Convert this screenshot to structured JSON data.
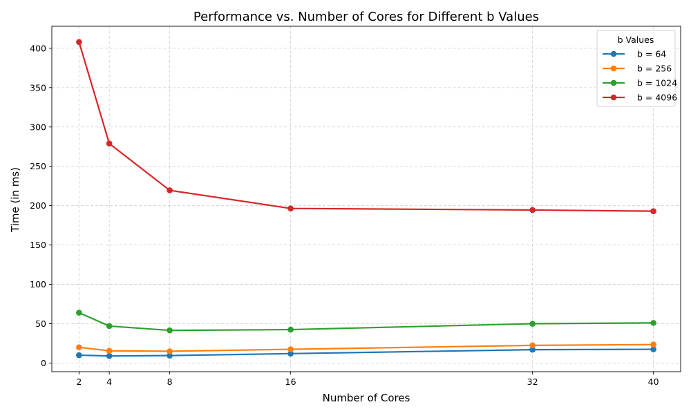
{
  "chart_data": {
    "type": "line",
    "title": "Performance vs. Number of Cores for Different b Values",
    "xlabel": "Number of Cores",
    "ylabel": "Time (in ms)",
    "x": [
      2,
      4,
      8,
      16,
      32,
      40
    ],
    "xticks": [
      "2",
      "4",
      "8",
      "16",
      "32",
      "40"
    ],
    "xlim": [
      0.2,
      41.8
    ],
    "yticks": [
      "0",
      "50",
      "100",
      "150",
      "200",
      "250",
      "300",
      "350",
      "400"
    ],
    "ylim": [
      -11,
      428
    ],
    "grid": true,
    "legend": {
      "title": "b Values",
      "placement": "top-right"
    },
    "series": [
      {
        "name": "b = 64",
        "color": "#1f77b4",
        "values": [
          10.0,
          9.0,
          9.5,
          12.0,
          17.0,
          17.5
        ]
      },
      {
        "name": "b = 256",
        "color": "#ff7f0e",
        "values": [
          20.0,
          15.5,
          15.0,
          17.5,
          22.5,
          23.5
        ]
      },
      {
        "name": "b = 1024",
        "color": "#2ca02c",
        "values": [
          64.0,
          47.0,
          41.5,
          42.5,
          50.0,
          51.0
        ]
      },
      {
        "name": "b = 4096",
        "color": "#d62728",
        "values": [
          408.0,
          279.0,
          219.5,
          196.5,
          194.5,
          193.0
        ]
      }
    ]
  }
}
